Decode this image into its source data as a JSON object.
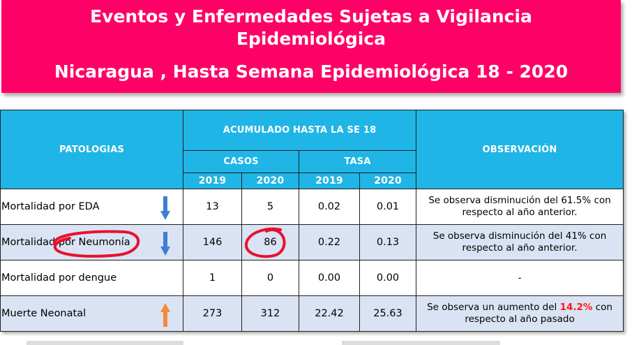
{
  "banner": {
    "title_line1": "Eventos y Enfermedades Sujetas a Vigilancia",
    "title_line2": "Epidemiológica",
    "subtitle": "Nicaragua , Hasta Semana Epidemiológica 18 - 2020"
  },
  "table": {
    "header_patologias": "PATOLOGIAS",
    "header_acumulado": "ACUMULADO HASTA LA SE 18",
    "header_casos": "CASOS",
    "header_tasa": "TASA",
    "header_observacion": "OBSERVACIÓN",
    "years": [
      "2019",
      "2020",
      "2019",
      "2020"
    ],
    "rows": [
      {
        "label": "Mortalidad por EDA",
        "casos_2019": "13",
        "casos_2020": "5",
        "tasa_2019": "0.02",
        "tasa_2020": "0.01",
        "trend": "down",
        "obs_before": "Se observa disminución del 61.5% con respecto al año anterior.",
        "obs_highlight": "",
        "obs_after": ""
      },
      {
        "label": "Mortalidad por Neumonía",
        "casos_2019": "146",
        "casos_2020": "86",
        "tasa_2019": "0.22",
        "tasa_2020": "0.13",
        "trend": "down",
        "obs_before": "Se observa disminución del 41% con respecto al año anterior.",
        "obs_highlight": "",
        "obs_after": ""
      },
      {
        "label": "Mortalidad por dengue",
        "casos_2019": "1",
        "casos_2020": "0",
        "tasa_2019": "0.00",
        "tasa_2020": "0.00",
        "trend": "none",
        "obs_before": "-",
        "obs_highlight": "",
        "obs_after": ""
      },
      {
        "label": "Muerte Neonatal",
        "casos_2019": "273",
        "casos_2020": "312",
        "tasa_2019": "22.42",
        "tasa_2020": "25.63",
        "trend": "up",
        "obs_before": "Se observa un aumento del ",
        "obs_highlight": "14.2%",
        "obs_after": " con respecto al año pasado"
      }
    ]
  },
  "colors": {
    "banner": "#ff0066",
    "header": "#1fb5e6",
    "row_alt": "#dae3f3",
    "arrow_down": "#3d7fd1",
    "arrow_up": "#f58a3a",
    "annotation": "#e8112d",
    "highlight_text": "#ff1a1a"
  },
  "icons": {
    "down": "arrow-down-icon",
    "up": "arrow-up-icon"
  }
}
